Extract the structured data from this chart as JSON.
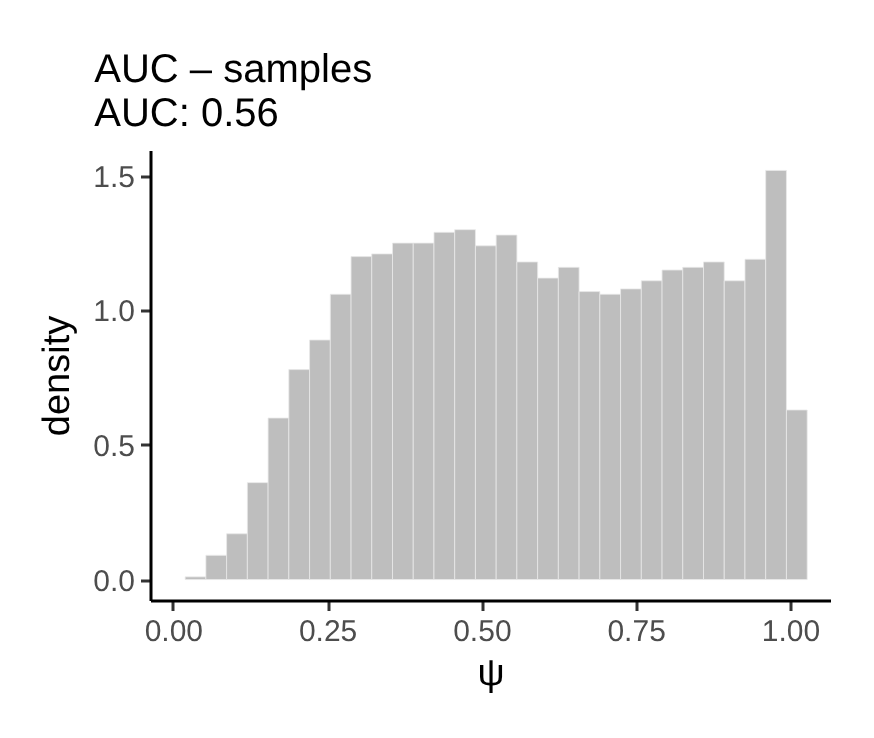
{
  "chart_data": {
    "type": "histogram",
    "title": "AUC – samples",
    "subtitle": "AUC: 0.56",
    "xlabel": "ψ",
    "ylabel": "density",
    "bins": [
      0.02,
      0.0536,
      0.0872,
      0.1208,
      0.1544,
      0.188,
      0.2216,
      0.2552,
      0.2888,
      0.3224,
      0.356,
      0.3896,
      0.4232,
      0.4568,
      0.4904,
      0.524,
      0.5576,
      0.5912,
      0.6248,
      0.6584,
      0.692,
      0.7256,
      0.7592,
      0.7928,
      0.8264,
      0.86,
      0.8936,
      0.9272,
      0.9608,
      0.9944,
      1.028
    ],
    "values": [
      0.01,
      0.09,
      0.17,
      0.36,
      0.6,
      0.78,
      0.89,
      1.06,
      1.2,
      1.21,
      1.25,
      1.25,
      1.29,
      1.3,
      1.24,
      1.28,
      1.18,
      1.12,
      1.16,
      1.07,
      1.06,
      1.08,
      1.11,
      1.15,
      1.16,
      1.18,
      1.11,
      1.19,
      1.52,
      0.63
    ],
    "color": "#bebebe",
    "xlim": [
      -0.037,
      1.065
    ],
    "xticks": [
      {
        "value": 0,
        "label": "0.00"
      },
      0.25,
      {
        "value": 0.5,
        "label": "0.50"
      },
      0.75,
      {
        "value": 1,
        "label": "1.00"
      }
    ],
    "ylim": [
      -0.076,
      1.596
    ],
    "yticks": [
      {
        "value": 0,
        "label": "0.0"
      },
      0.5,
      {
        "value": 1,
        "label": "1.0"
      },
      1.5
    ],
    "grid": false
  }
}
